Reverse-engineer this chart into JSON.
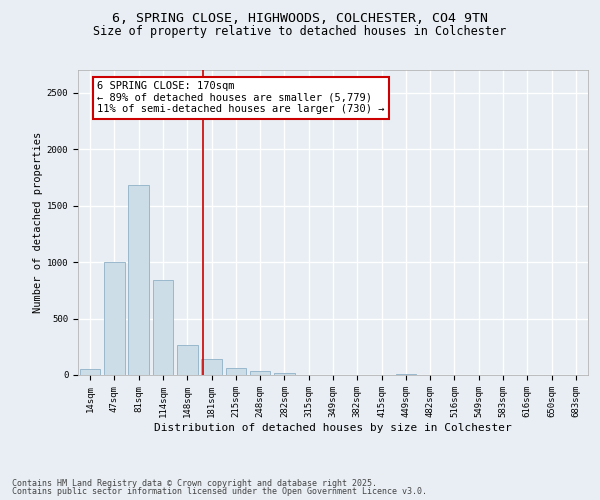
{
  "title_line1": "6, SPRING CLOSE, HIGHWOODS, COLCHESTER, CO4 9TN",
  "title_line2": "Size of property relative to detached houses in Colchester",
  "xlabel": "Distribution of detached houses by size in Colchester",
  "ylabel": "Number of detached properties",
  "categories": [
    "14sqm",
    "47sqm",
    "81sqm",
    "114sqm",
    "148sqm",
    "181sqm",
    "215sqm",
    "248sqm",
    "282sqm",
    "315sqm",
    "349sqm",
    "382sqm",
    "415sqm",
    "449sqm",
    "482sqm",
    "516sqm",
    "549sqm",
    "583sqm",
    "616sqm",
    "650sqm",
    "683sqm"
  ],
  "values": [
    55,
    1000,
    1680,
    840,
    270,
    145,
    65,
    35,
    15,
    0,
    0,
    0,
    0,
    5,
    0,
    0,
    0,
    0,
    0,
    0,
    0
  ],
  "bar_color": "#ccdde8",
  "bar_edge_color": "#9ab8cc",
  "vline_color": "#cc0000",
  "annotation_text": "6 SPRING CLOSE: 170sqm\n← 89% of detached houses are smaller (5,779)\n11% of semi-detached houses are larger (730) →",
  "annotation_box_color": "#ffffff",
  "annotation_border_color": "#cc0000",
  "ylim": [
    0,
    2700
  ],
  "yticks": [
    0,
    500,
    1000,
    1500,
    2000,
    2500
  ],
  "background_color": "#e8eef4",
  "plot_bg_color": "#e8eef4",
  "grid_color": "#ffffff",
  "footer_line1": "Contains HM Land Registry data © Crown copyright and database right 2025.",
  "footer_line2": "Contains public sector information licensed under the Open Government Licence v3.0.",
  "title_fontsize": 9.5,
  "subtitle_fontsize": 8.5,
  "tick_fontsize": 6.5,
  "ylabel_fontsize": 7.5,
  "xlabel_fontsize": 8,
  "annotation_fontsize": 7.5,
  "footer_fontsize": 6
}
